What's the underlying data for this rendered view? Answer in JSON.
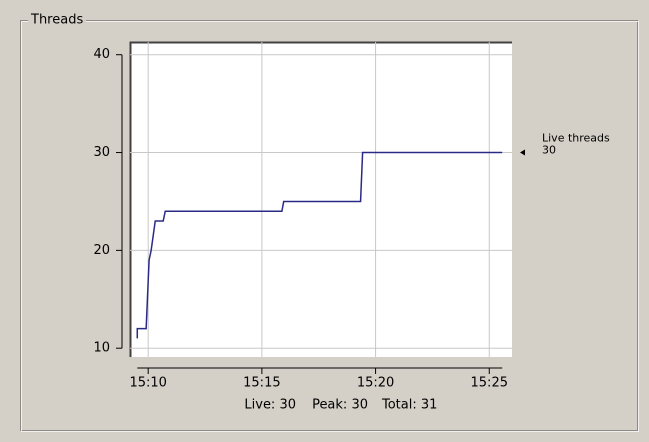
{
  "panel_title": "Threads",
  "chart_data": {
    "type": "line",
    "x": [
      909.52,
      909.52,
      909.91,
      910.04,
      910.13,
      910.31,
      910.66,
      910.75,
      915.88,
      915.96,
      919.34,
      919.43,
      925.57
    ],
    "series": [
      {
        "name": "Live threads",
        "color": "#2a2a86",
        "values": [
          11,
          12,
          12,
          19,
          20,
          23,
          23,
          24,
          24,
          25,
          25,
          30,
          30
        ]
      }
    ],
    "xlim": [
      909.2,
      926
    ],
    "ylim": [
      9.1,
      41.3
    ],
    "xticks": [
      {
        "value": 910,
        "label": "15:10"
      },
      {
        "value": 915,
        "label": "15:15"
      },
      {
        "value": 920,
        "label": "15:20"
      },
      {
        "value": 925,
        "label": "15:25"
      }
    ],
    "yticks": [
      10,
      20,
      30,
      40
    ],
    "grid": true,
    "annotation": {
      "text": "Live threads",
      "value": 30
    }
  },
  "footer": [
    "Live: 30",
    "Peak: 30",
    "Total: 31"
  ]
}
